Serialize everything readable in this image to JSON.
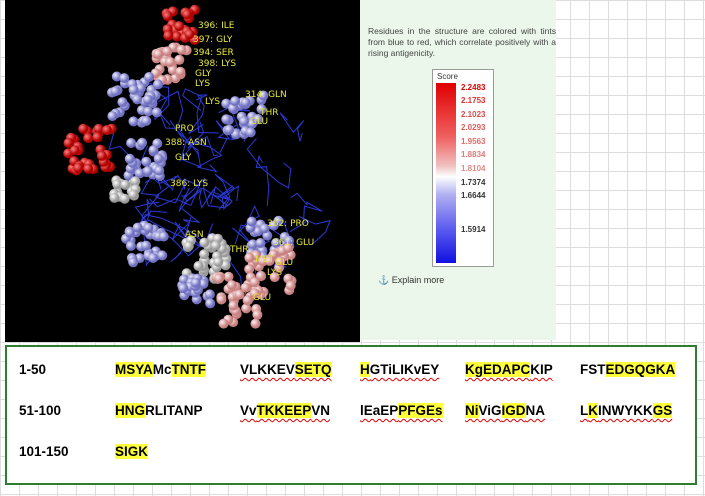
{
  "structure_labels": [
    "396: ILE",
    "397: GLY",
    "394: SER",
    "398: LYS",
    "GLY",
    "LYS",
    "314: GLN",
    "LYS",
    "THR",
    "GLU",
    "PRO",
    "388: ASN",
    "GLY",
    "386: LYS",
    "362: PRO",
    "ASN",
    "THR",
    "361: GLU",
    "MET",
    "GLU",
    "LYS",
    "GLU"
  ],
  "legend": {
    "description": "Residues in the structure are colored with tints from blue to red, which correlate positively with a rising antigenicity.",
    "score_title": "Score",
    "scale": [
      "2.2483",
      "2.1753",
      "2.1023",
      "2.0293",
      "1.9563",
      "1.8834",
      "1.8104",
      "1.7374",
      "1.6644",
      "1.5914"
    ],
    "link": "Explain more"
  },
  "sequence": {
    "rows": [
      {
        "label": "1-50",
        "groups": [
          {
            "underlined": false,
            "segments": [
              {
                "text": "MSYA",
                "highlight": true
              },
              {
                "text": "Mc",
                "highlight": false
              },
              {
                "text": "TNTF",
                "highlight": true
              }
            ]
          },
          {
            "underlined": true,
            "segments": [
              {
                "text": "VLKKEV",
                "highlight": false
              },
              {
                "text": "SETQ",
                "highlight": true
              }
            ]
          },
          {
            "underlined": true,
            "segments": [
              {
                "text": "H",
                "highlight": true
              },
              {
                "text": "GTiLIKvEY",
                "highlight": false
              }
            ]
          },
          {
            "underlined": true,
            "segments": [
              {
                "text": "KgEDAPC",
                "highlight": true
              },
              {
                "text": "KIP",
                "highlight": false
              }
            ]
          },
          {
            "underlined": false,
            "segments": [
              {
                "text": "FST",
                "highlight": false
              },
              {
                "text": "EDGQGKA",
                "highlight": true
              }
            ]
          }
        ]
      },
      {
        "label": "51-100",
        "groups": [
          {
            "underlined": false,
            "segments": [
              {
                "text": "HNG",
                "highlight": true
              },
              {
                "text": "RLITANP",
                "highlight": false
              }
            ]
          },
          {
            "underlined": true,
            "segments": [
              {
                "text": "Vv",
                "highlight": false
              },
              {
                "text": "TKKEEP",
                "highlight": true
              },
              {
                "text": "VN",
                "highlight": false
              }
            ]
          },
          {
            "underlined": true,
            "segments": [
              {
                "text": "lEaEP",
                "highlight": false
              },
              {
                "text": "PFGEs",
                "highlight": true
              }
            ]
          },
          {
            "underlined": true,
            "segments": [
              {
                "text": "Ni",
                "highlight": true
              },
              {
                "text": "ViG",
                "highlight": false
              },
              {
                "text": "IGD",
                "highlight": true
              },
              {
                "text": "NA",
                "highlight": false
              }
            ]
          },
          {
            "underlined": true,
            "segments": [
              {
                "text": "L",
                "highlight": false
              },
              {
                "text": "K",
                "highlight": true
              },
              {
                "text": "INWYKK",
                "highlight": false
              },
              {
                "text": "GS",
                "highlight": true
              }
            ]
          }
        ]
      },
      {
        "label": "101-150",
        "groups": [
          {
            "underlined": false,
            "segments": [
              {
                "text": "SIGK",
                "highlight": true
              }
            ]
          }
        ]
      }
    ]
  }
}
